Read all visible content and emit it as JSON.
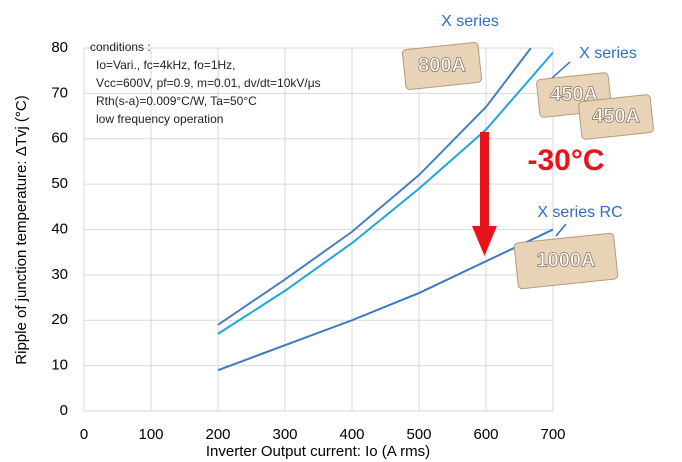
{
  "chart_data": {
    "type": "line",
    "xlabel": "Inverter Output current: Io (A rms)",
    "ylabel": "Ripple of junction temperature: ΔTvj (°C)",
    "conditions": [
      "conditions :",
      "Io=Vari., fc=4kHz, fo=1Hz,",
      "Vcc=600V, pf=0.9, m=0.01, dv/dt=10kV/μs",
      "Rth(s-a)=0.009°C/W, Ta=50°C",
      "low frequency operation"
    ],
    "series": [
      {
        "color": "#4a7ebb",
        "x": [
          200,
          300,
          400,
          500,
          600,
          667
        ],
        "values": [
          19,
          29,
          39.5,
          52,
          67,
          80
        ]
      },
      {
        "color": "#1ea6df",
        "x": [
          200,
          300,
          400,
          500,
          600,
          700
        ],
        "values": [
          17,
          26.5,
          37,
          49,
          62,
          79
        ]
      },
      {
        "color": "#3a78c8",
        "x": [
          200,
          300,
          400,
          500,
          600,
          700
        ],
        "values": [
          9,
          14.5,
          20,
          26,
          33,
          40
        ]
      }
    ],
    "annotations": {
      "x_series_800": "X series",
      "module_800": "800A",
      "x_series_450": "X series",
      "module_450a": "450A",
      "module_450b": "450A",
      "x_series_rc": "X series RC",
      "module_1000": "1000A",
      "reduction": "-30°C"
    },
    "xlim": [
      0,
      700
    ],
    "ylim": [
      0,
      80
    ],
    "xticks": [
      0,
      100,
      200,
      300,
      400,
      500,
      600,
      700
    ],
    "yticks": [
      0,
      10,
      20,
      30,
      40,
      50,
      60,
      70,
      80
    ],
    "grid": true
  }
}
